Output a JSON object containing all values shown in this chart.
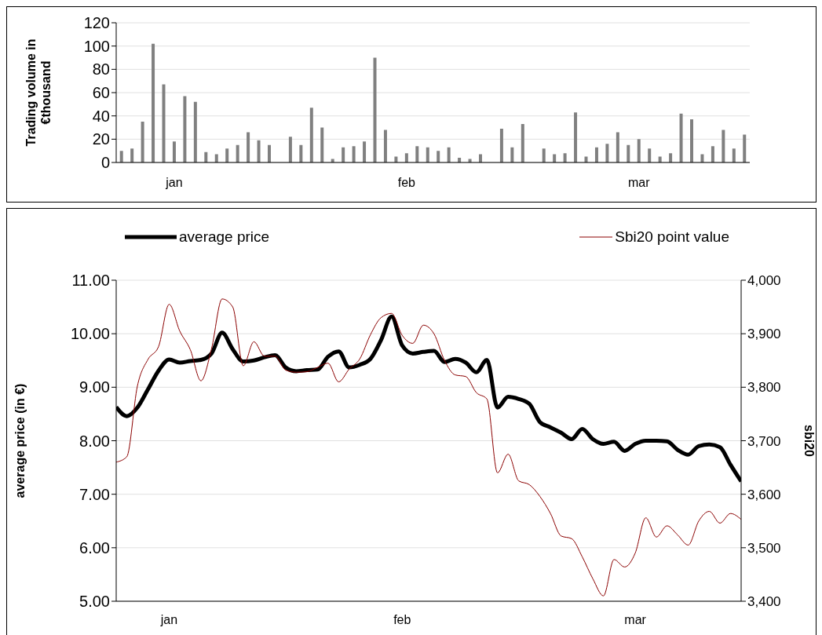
{
  "chart_data": [
    {
      "type": "bar",
      "ylabel": "Trading volume in €thousand",
      "categories": [
        null,
        null,
        null,
        null,
        null,
        "jan",
        null,
        null,
        null,
        null,
        null,
        null,
        null,
        null,
        null,
        null,
        null,
        null,
        null,
        null,
        null,
        null,
        null,
        null,
        null,
        null,
        null,
        "feb",
        null,
        null,
        null,
        null,
        null,
        null,
        null,
        null,
        null,
        null,
        null,
        null,
        null,
        null,
        null,
        null,
        null,
        null,
        null,
        null,
        null,
        "mar",
        null,
        null,
        null,
        null,
        null,
        null,
        null,
        null,
        null,
        null
      ],
      "values": [
        10,
        12,
        35,
        102,
        67,
        18,
        57,
        52,
        9,
        7,
        12,
        15,
        26,
        19,
        15,
        null,
        22,
        15,
        47,
        30,
        3,
        13,
        14,
        18,
        90,
        28,
        5,
        8,
        14,
        13,
        10,
        13,
        4,
        3,
        7,
        null,
        29,
        13,
        33,
        null,
        12,
        7,
        8,
        43,
        5,
        13,
        16,
        26,
        15,
        20,
        12,
        5,
        8,
        42,
        37,
        7,
        14,
        28,
        12,
        24
      ],
      "color": "#808080",
      "ylim": [
        0,
        120
      ],
      "yticks": [
        0,
        20,
        40,
        60,
        80,
        100,
        120
      ],
      "grid": "y"
    },
    {
      "type": "line",
      "ylabel": "average price (in €)",
      "y2label": "sbi20",
      "legend": "top",
      "grid": "y",
      "categories": [
        null,
        null,
        null,
        null,
        null,
        "jan",
        null,
        null,
        null,
        null,
        null,
        null,
        null,
        null,
        null,
        null,
        null,
        null,
        null,
        null,
        null,
        null,
        null,
        null,
        null,
        null,
        null,
        "feb",
        null,
        null,
        null,
        null,
        null,
        null,
        null,
        null,
        null,
        null,
        null,
        null,
        null,
        null,
        null,
        null,
        null,
        null,
        null,
        null,
        null,
        "mar",
        null,
        null,
        null,
        null,
        null,
        null,
        null,
        null,
        null,
        null
      ],
      "series": [
        {
          "name": "average price",
          "color": "#000000",
          "values": [
            8.63,
            8.46,
            8.62,
            8.96,
            9.31,
            9.52,
            9.46,
            9.49,
            9.51,
            9.63,
            10.02,
            9.71,
            9.48,
            9.5,
            9.56,
            9.6,
            9.37,
            9.3,
            9.32,
            9.33,
            9.57,
            9.67,
            9.37,
            9.42,
            9.53,
            9.88,
            10.32,
            9.78,
            9.63,
            9.66,
            9.68,
            9.47,
            9.53,
            9.46,
            9.28,
            9.51,
            8.62,
            8.82,
            8.78,
            8.69,
            8.35,
            8.25,
            8.15,
            8.03,
            8.22,
            8.03,
            7.94,
            7.98,
            7.81,
            7.94,
            8.0,
            8.0,
            7.99,
            7.83,
            7.74,
            7.9,
            7.93,
            7.88,
            7.55,
            7.24
          ]
        },
        {
          "name": "Sbi20 point value",
          "color": "#8b0000",
          "axis": "y2",
          "values": [
            3660,
            3670,
            3802,
            3852,
            3876,
            3955,
            3905,
            3870,
            3812,
            3872,
            3965,
            3950,
            3840,
            3885,
            3858,
            3858,
            3832,
            3828,
            3829,
            3837,
            3845,
            3810,
            3834,
            3853,
            3898,
            3930,
            3938,
            3897,
            3882,
            3916,
            3900,
            3850,
            3823,
            3820,
            3790,
            3778,
            3640,
            3675,
            3625,
            3618,
            3596,
            3564,
            3522,
            3517,
            3483,
            3442,
            3410,
            3478,
            3464,
            3490,
            3556,
            3520,
            3541,
            3524,
            3505,
            3550,
            3568,
            3546,
            3564,
            3553
          ]
        }
      ],
      "ylim": [
        5,
        11
      ],
      "yticks": [
        {
          "value": 5,
          "label": "5.00"
        },
        {
          "value": 6,
          "label": "6.00"
        },
        {
          "value": 7,
          "label": "7.00"
        },
        {
          "value": 8,
          "label": "8.00"
        },
        {
          "value": 9,
          "label": "9.00"
        },
        {
          "value": 10,
          "label": "10.00"
        },
        {
          "value": 11,
          "label": "11.00"
        }
      ],
      "y2lim": [
        3400,
        4000
      ],
      "y2ticks": [
        {
          "value": 3400,
          "label": "3,400"
        },
        {
          "value": 3500,
          "label": "3,500"
        },
        {
          "value": 3600,
          "label": "3,600"
        },
        {
          "value": 3700,
          "label": "3,700"
        },
        {
          "value": 3800,
          "label": "3,800"
        },
        {
          "value": 3900,
          "label": "3,900"
        },
        {
          "value": 4000,
          "label": "4,000"
        }
      ]
    }
  ]
}
